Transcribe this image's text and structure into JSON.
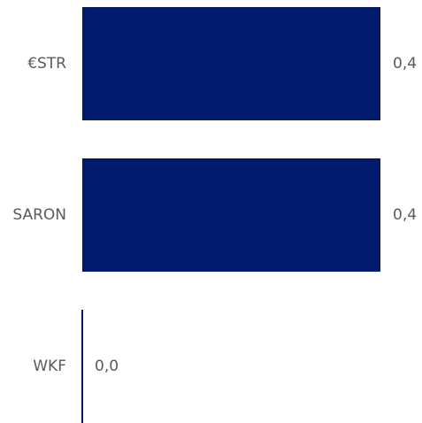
{
  "chart_data": {
    "type": "bar",
    "orientation": "horizontal",
    "title": "",
    "xlabel": "",
    "ylabel": "",
    "categories": [
      "€STR",
      "SARON",
      "WKF"
    ],
    "values": [
      0.4,
      0.4,
      0.0
    ],
    "data_labels": [
      "0,4",
      "0,4",
      "0,0"
    ],
    "xlim": [
      0,
      0.45
    ],
    "bar_color": "#021a6b",
    "axis_color": "#021a6b",
    "grid": false,
    "legend": "none"
  }
}
